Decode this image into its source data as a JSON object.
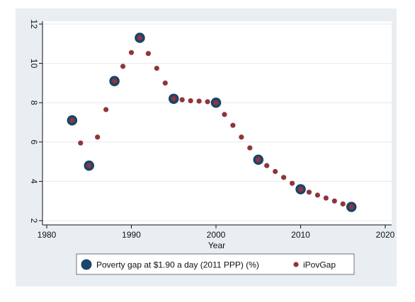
{
  "chart_data": {
    "type": "scatter",
    "title": "",
    "xlabel": "Year",
    "ylabel": "",
    "xlim": [
      1980,
      2020
    ],
    "ylim": [
      2,
      12
    ],
    "x_ticks": [
      1980,
      1990,
      2000,
      2010,
      2020
    ],
    "y_ticks": [
      2,
      4,
      6,
      8,
      10,
      12
    ],
    "grid": true,
    "legend_position": "bottom",
    "colors": {
      "outer_background": "#e8eef2",
      "plot_background": "#ffffff",
      "grid": "#e4e9ed",
      "poverty_gap": "#1a476f",
      "ipovgap": "#90353b"
    },
    "series": [
      {
        "name": "Poverty gap at $1.90 a day (2011 PPP) (%)",
        "marker": "large-circle",
        "color": "#1a476f",
        "points": [
          [
            1983,
            7.1
          ],
          [
            1985,
            4.8
          ],
          [
            1988,
            9.1
          ],
          [
            1991,
            11.3
          ],
          [
            1995,
            8.2
          ],
          [
            2000,
            8.0
          ],
          [
            2005,
            5.1
          ],
          [
            2010,
            3.6
          ],
          [
            2016,
            2.7
          ]
        ]
      },
      {
        "name": "iPovGap",
        "marker": "small-circle",
        "color": "#90353b",
        "points": [
          [
            1983,
            7.1
          ],
          [
            1984,
            5.95
          ],
          [
            1985,
            4.8
          ],
          [
            1986,
            6.25
          ],
          [
            1987,
            7.65
          ],
          [
            1988,
            9.1
          ],
          [
            1989,
            9.85
          ],
          [
            1990,
            10.55
          ],
          [
            1991,
            11.3
          ],
          [
            1992,
            10.5
          ],
          [
            1993,
            9.75
          ],
          [
            1994,
            9.0
          ],
          [
            1995,
            8.2
          ],
          [
            1996,
            8.15
          ],
          [
            1997,
            8.1
          ],
          [
            1998,
            8.08
          ],
          [
            1999,
            8.05
          ],
          [
            2000,
            8.0
          ],
          [
            2001,
            7.4
          ],
          [
            2002,
            6.85
          ],
          [
            2003,
            6.25
          ],
          [
            2004,
            5.7
          ],
          [
            2005,
            5.1
          ],
          [
            2006,
            4.8
          ],
          [
            2007,
            4.5
          ],
          [
            2008,
            4.2
          ],
          [
            2009,
            3.9
          ],
          [
            2010,
            3.6
          ],
          [
            2011,
            3.45
          ],
          [
            2012,
            3.3
          ],
          [
            2013,
            3.15
          ],
          [
            2014,
            3.0
          ],
          [
            2015,
            2.85
          ],
          [
            2016,
            2.7
          ]
        ]
      }
    ]
  }
}
